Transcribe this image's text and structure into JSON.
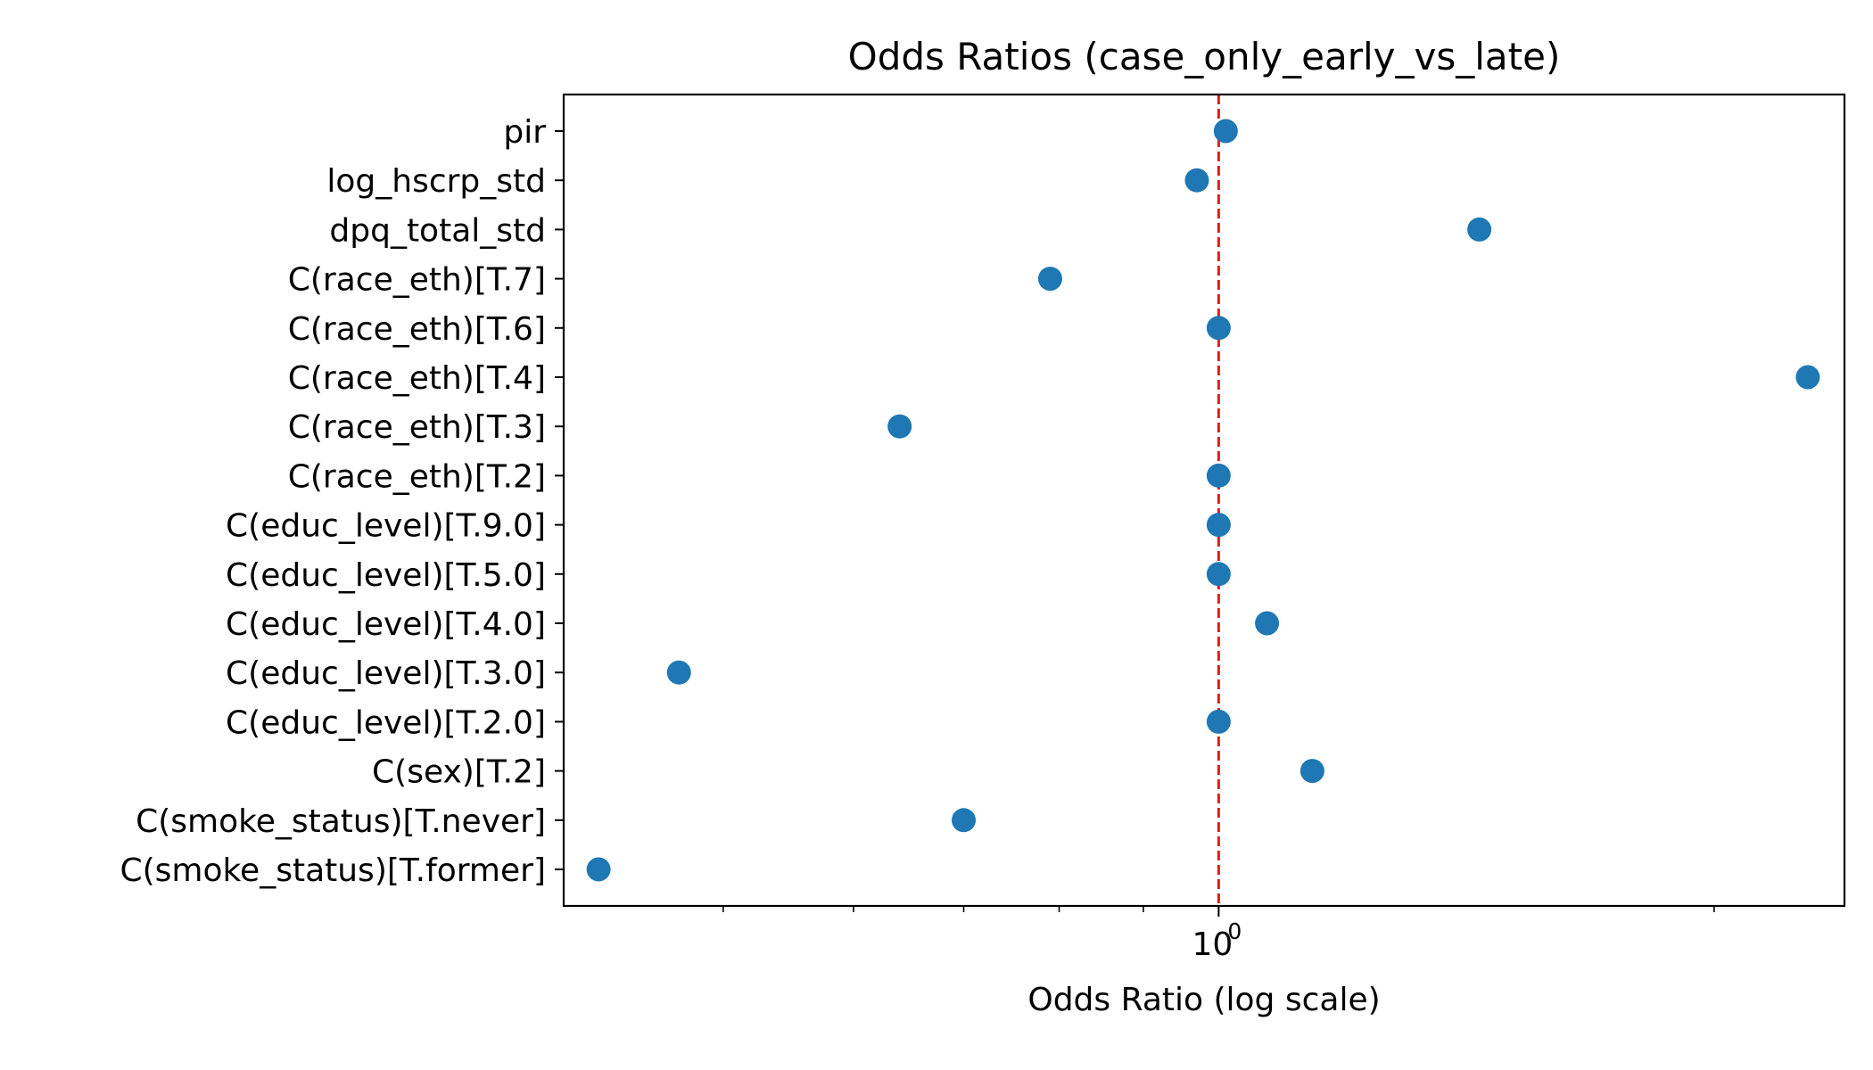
{
  "chart_data": {
    "type": "scatter",
    "title": "Odds Ratios (case_only_early_vs_late)",
    "xlabel": "Odds Ratio (log scale)",
    "ylabel": "",
    "xscale": "log",
    "xlim": [
      0.4,
      2.4
    ],
    "x_major_tick": {
      "value": 1,
      "base": "10",
      "exponent": "0"
    },
    "x_minor_ticks": [
      0.5,
      0.6,
      0.7,
      0.8,
      0.9,
      2
    ],
    "reference_line": {
      "x": 1,
      "color": "#e31a1c",
      "style": "dashed"
    },
    "marker_color": "#1f77b4",
    "categories": [
      "pir",
      "log_hscrp_std",
      "dpq_total_std",
      "C(race_eth)[T.7]",
      "C(race_eth)[T.6]",
      "C(race_eth)[T.4]",
      "C(race_eth)[T.3]",
      "C(race_eth)[T.2]",
      "C(educ_level)[T.9.0]",
      "C(educ_level)[T.5.0]",
      "C(educ_level)[T.4.0]",
      "C(educ_level)[T.3.0]",
      "C(educ_level)[T.2.0]",
      "C(sex)[T.2]",
      "C(smoke_status)[T.never]",
      "C(smoke_status)[T.former]"
    ],
    "values": [
      1.01,
      0.97,
      1.44,
      0.79,
      1.0,
      2.28,
      0.64,
      1.0,
      1.0,
      1.0,
      1.07,
      0.47,
      1.0,
      1.14,
      0.7,
      0.42
    ],
    "grid": false,
    "legend": "none"
  }
}
